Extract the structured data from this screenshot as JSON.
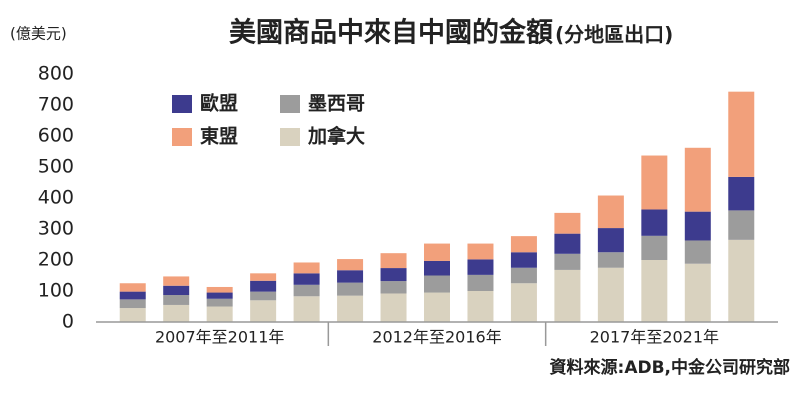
{
  "chart_data": {
    "type": "bar",
    "stacked": true,
    "title": "美國商品中來自中國的金額",
    "subtitle": "(分地區出口)",
    "unit_label": "(億美元)",
    "source": "資料來源:ADB,中金公司研究部",
    "categories": [
      null,
      null,
      null,
      null,
      null,
      null,
      null,
      null,
      null,
      null,
      null,
      null,
      null,
      null,
      null
    ],
    "groups": [
      "2007年至2011年",
      "2012年至2016年",
      "2017年至2021年"
    ],
    "series": [
      {
        "name": "加拿大",
        "color": "#d9d2bf",
        "values": [
          45,
          55,
          50,
          70,
          83,
          85,
          92,
          95,
          100,
          125,
          168,
          175,
          200,
          188,
          265
        ]
      },
      {
        "name": "墨西哥",
        "color": "#9c9c9c",
        "values": [
          28,
          32,
          25,
          28,
          37,
          42,
          40,
          55,
          52,
          50,
          52,
          50,
          78,
          75,
          95
        ]
      },
      {
        "name": "歐盟",
        "color": "#3d3b8e",
        "values": [
          25,
          30,
          20,
          35,
          37,
          40,
          42,
          47,
          50,
          50,
          65,
          78,
          85,
          93,
          108
        ]
      },
      {
        "name": "東盟",
        "color": "#f2a07b",
        "values": [
          27,
          30,
          18,
          24,
          35,
          36,
          48,
          56,
          51,
          52,
          67,
          105,
          174,
          206,
          275
        ]
      }
    ],
    "ylim": [
      0,
      800
    ],
    "yticks": [
      0,
      100,
      200,
      300,
      400,
      500,
      600,
      700,
      800
    ],
    "grid": false,
    "legend": "upper left"
  }
}
